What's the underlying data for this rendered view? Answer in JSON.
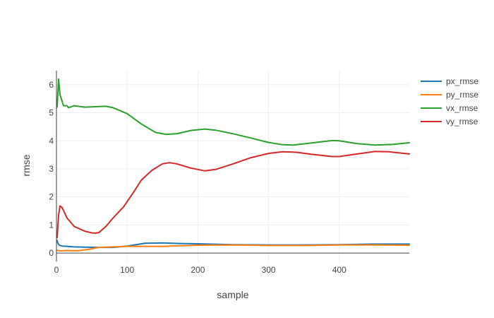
{
  "chart_data": {
    "type": "line",
    "title": "",
    "xlabel": "sample",
    "ylabel": "rmse",
    "xlim": [
      0,
      499
    ],
    "ylim": [
      -0.3,
      6.5
    ],
    "xticks": [
      0,
      100,
      200,
      300,
      400
    ],
    "yticks": [
      0,
      1,
      2,
      3,
      4,
      5,
      6
    ],
    "grid": true,
    "legend_position": "top-right",
    "series": [
      {
        "name": "px_rmse",
        "color": "#1f77b4",
        "x": [
          1,
          2,
          4,
          8,
          15,
          25,
          40,
          60,
          80,
          100,
          125,
          150,
          175,
          200,
          250,
          300,
          350,
          400,
          450,
          499
        ],
        "y": [
          0.45,
          0.35,
          0.28,
          0.25,
          0.24,
          0.22,
          0.21,
          0.2,
          0.2,
          0.25,
          0.35,
          0.36,
          0.34,
          0.33,
          0.3,
          0.29,
          0.29,
          0.3,
          0.32,
          0.32
        ]
      },
      {
        "name": "py_rmse",
        "color": "#ff7f0e",
        "x": [
          1,
          2,
          4,
          8,
          15,
          30,
          45,
          60,
          80,
          100,
          150,
          200,
          250,
          300,
          350,
          400,
          450,
          499
        ],
        "y": [
          0.1,
          0.09,
          0.08,
          0.08,
          0.09,
          0.08,
          0.13,
          0.2,
          0.22,
          0.24,
          0.24,
          0.28,
          0.29,
          0.27,
          0.27,
          0.29,
          0.29,
          0.28
        ]
      },
      {
        "name": "vx_rmse",
        "color": "#2ca02c",
        "x": [
          1,
          3,
          5,
          10,
          15,
          17,
          25,
          40,
          60,
          70,
          80,
          100,
          120,
          140,
          155,
          170,
          190,
          210,
          225,
          250,
          275,
          300,
          320,
          335,
          360,
          390,
          400,
          425,
          450,
          475,
          499
        ],
        "y": [
          5.2,
          6.2,
          5.65,
          5.25,
          5.25,
          5.18,
          5.25,
          5.2,
          5.22,
          5.23,
          5.18,
          4.97,
          4.6,
          4.3,
          4.23,
          4.25,
          4.37,
          4.42,
          4.38,
          4.25,
          4.1,
          3.94,
          3.86,
          3.85,
          3.92,
          4.01,
          4.0,
          3.9,
          3.85,
          3.87,
          3.93
        ]
      },
      {
        "name": "vy_rmse",
        "color": "#d62728",
        "x": [
          1,
          3,
          5,
          8,
          15,
          25,
          40,
          50,
          55,
          60,
          70,
          80,
          95,
          110,
          120,
          135,
          150,
          160,
          170,
          190,
          210,
          225,
          250,
          275,
          300,
          320,
          340,
          360,
          390,
          400,
          425,
          450,
          470,
          499
        ],
        "y": [
          0.55,
          1.35,
          1.68,
          1.62,
          1.25,
          0.95,
          0.78,
          0.72,
          0.71,
          0.73,
          0.95,
          1.25,
          1.65,
          2.2,
          2.6,
          2.95,
          3.18,
          3.22,
          3.18,
          3.03,
          2.93,
          2.98,
          3.18,
          3.4,
          3.55,
          3.61,
          3.59,
          3.52,
          3.44,
          3.44,
          3.53,
          3.62,
          3.61,
          3.53
        ]
      }
    ]
  }
}
